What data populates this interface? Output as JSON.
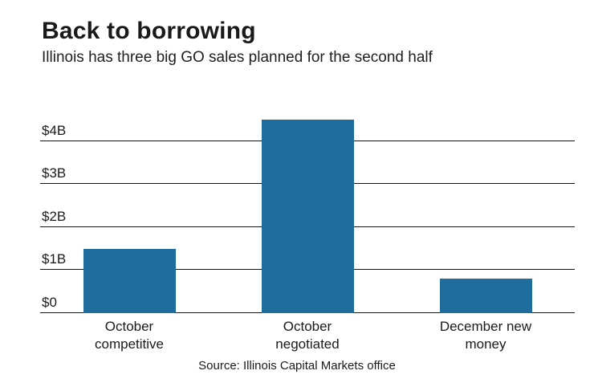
{
  "header": {
    "title": "Back to borrowing",
    "subtitle": "Illinois has three big GO sales planned for the second half"
  },
  "source": "Source: Illinois Capital Markets office",
  "chart_data": {
    "type": "bar",
    "title": "Back to borrowing",
    "subtitle": "Illinois has three big GO sales planned for the second half",
    "categories": [
      "October\ncompetitive",
      "October\nnegotiated",
      "December new\nmoney"
    ],
    "values": [
      1.5,
      4.5,
      0.8
    ],
    "values_unit": "billions USD",
    "xlabel": "",
    "ylabel": "",
    "ylim": [
      0,
      4.7
    ],
    "yticks": [
      {
        "value": 0,
        "label": "$0"
      },
      {
        "value": 1,
        "label": "$1B"
      },
      {
        "value": 2,
        "label": "$2B"
      },
      {
        "value": 3,
        "label": "$3B"
      },
      {
        "value": 4,
        "label": "$4B"
      }
    ],
    "grid": true,
    "legend": false,
    "bar_color": "#1e6d9c",
    "source_note": "Source: Illinois Capital Markets office"
  }
}
